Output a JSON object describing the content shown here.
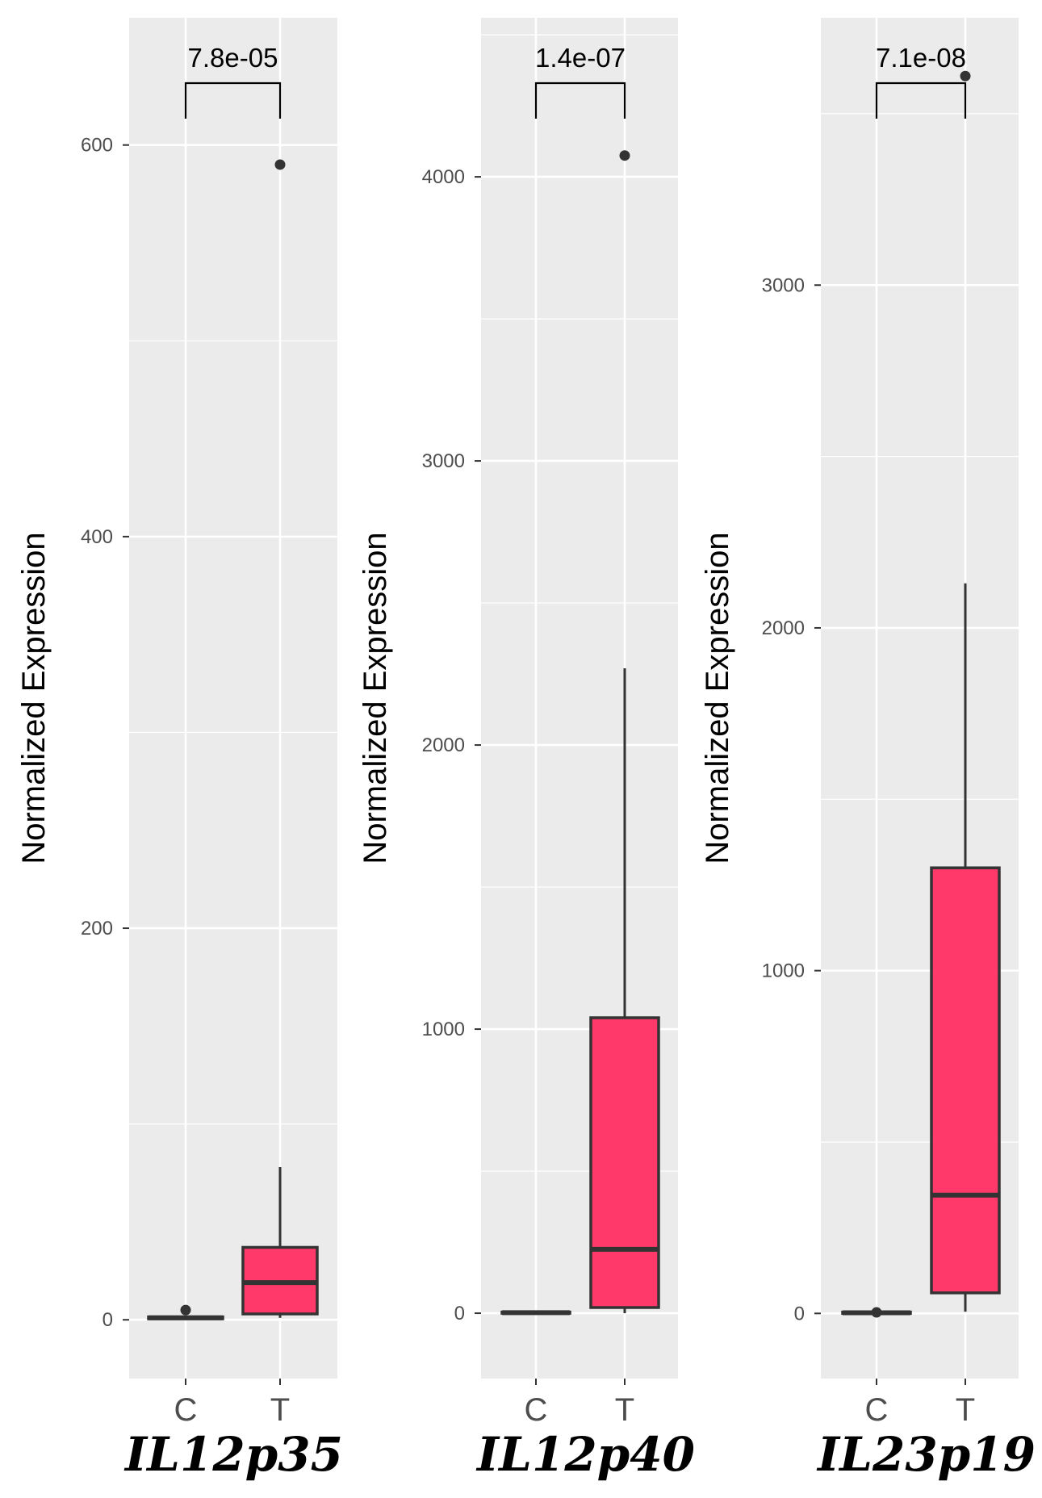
{
  "chart_data": [
    {
      "type": "box",
      "gene": "IL12p35",
      "ylabel": "Normalized Expression",
      "categories": [
        "C",
        "T"
      ],
      "yticks": [
        0,
        200,
        400,
        600
      ],
      "ylim": [
        -30,
        665
      ],
      "grid": true,
      "significance": "7.8e-05",
      "boxes": [
        {
          "category": "C",
          "q1": 0.5,
          "median": 1,
          "q3": 1.5,
          "whisker_low": 0,
          "whisker_high": 2
        },
        {
          "category": "T",
          "q1": 3,
          "median": 19,
          "q3": 37,
          "whisker_low": 1,
          "whisker_high": 78
        }
      ],
      "outliers": [
        {
          "category": "C",
          "value": 5
        },
        {
          "category": "T",
          "value": 590
        }
      ]
    },
    {
      "type": "box",
      "gene": "IL12p40",
      "ylabel": "Normalized Expression",
      "categories": [
        "C",
        "T"
      ],
      "yticks": [
        0,
        1000,
        2000,
        3000,
        4000
      ],
      "ylim": [
        -230,
        4560
      ],
      "grid": true,
      "significance": "1.4e-07",
      "boxes": [
        {
          "category": "C",
          "q1": 0,
          "median": 2,
          "q3": 4,
          "whisker_low": 0,
          "whisker_high": 6
        },
        {
          "category": "T",
          "q1": 20,
          "median": 225,
          "q3": 1040,
          "whisker_low": 0,
          "whisker_high": 2270
        }
      ],
      "outliers": [
        {
          "category": "T",
          "value": 4075
        }
      ]
    },
    {
      "type": "box",
      "gene": "IL23p19",
      "ylabel": "Normalized Expression",
      "categories": [
        "C",
        "T"
      ],
      "yticks": [
        0,
        1000,
        2000,
        3000
      ],
      "ylim": [
        -190,
        3780
      ],
      "grid": true,
      "significance": "7.1e-08",
      "boxes": [
        {
          "category": "C",
          "q1": 0,
          "median": 2,
          "q3": 4,
          "whisker_low": 0,
          "whisker_high": 6
        },
        {
          "category": "T",
          "q1": 60,
          "median": 345,
          "q3": 1300,
          "whisker_low": 5,
          "whisker_high": 2130
        }
      ],
      "outliers": [
        {
          "category": "C",
          "value": 3
        },
        {
          "category": "T",
          "value": 3610
        }
      ]
    }
  ],
  "colors": {
    "panel_bg": "#ebebeb",
    "grid": "#ffffff",
    "box_fill_C": "#ff3c6b",
    "box_fill_T": "#ff3a6a",
    "line": "#333333",
    "tick": "#4d4d4d"
  }
}
